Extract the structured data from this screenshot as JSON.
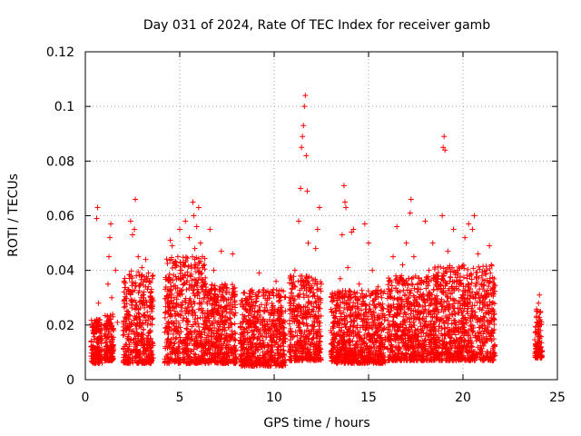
{
  "chart_data": {
    "type": "scatter",
    "title": "Day 031 of 2024, Rate Of TEC Index for receiver gamb",
    "xlabel": "GPS time / hours",
    "ylabel": "ROTI / TECUs",
    "xlim": [
      0,
      25
    ],
    "ylim": [
      0,
      0.12
    ],
    "xticks": [
      0,
      5,
      10,
      15,
      20,
      25
    ],
    "xtick_labels": [
      "0",
      "5",
      "10",
      "15",
      "20",
      "25"
    ],
    "yticks": [
      0,
      0.02,
      0.04,
      0.06,
      0.08,
      0.1,
      0.12
    ],
    "ytick_labels": [
      "0",
      "0.02",
      "0.04",
      "0.06",
      "0.08",
      "0.1",
      "0.12"
    ],
    "grid": true,
    "marker": "+",
    "color": "#ff0000",
    "series": [
      {
        "name": "ROTI",
        "points": [
          [
            0.3,
            0.012
          ],
          [
            0.4,
            0.018
          ],
          [
            0.5,
            0.01
          ],
          [
            0.6,
            0.022
          ],
          [
            0.6,
            0.059
          ],
          [
            0.65,
            0.063
          ],
          [
            0.7,
            0.028
          ],
          [
            0.8,
            0.015
          ],
          [
            1.1,
            0.012
          ],
          [
            1.2,
            0.035
          ],
          [
            1.25,
            0.045
          ],
          [
            1.3,
            0.052
          ],
          [
            1.35,
            0.057
          ],
          [
            1.4,
            0.03
          ],
          [
            1.5,
            0.018
          ],
          [
            1.6,
            0.04
          ],
          [
            1.7,
            0.021
          ],
          [
            2.1,
            0.009
          ],
          [
            2.2,
            0.025
          ],
          [
            2.3,
            0.033
          ],
          [
            2.4,
            0.058
          ],
          [
            2.5,
            0.053
          ],
          [
            2.6,
            0.055
          ],
          [
            2.65,
            0.066
          ],
          [
            2.7,
            0.038
          ],
          [
            2.8,
            0.045
          ],
          [
            3.0,
            0.041
          ],
          [
            3.1,
            0.03
          ],
          [
            3.2,
            0.044
          ],
          [
            3.3,
            0.02
          ],
          [
            3.4,
            0.036
          ],
          [
            4.4,
            0.015
          ],
          [
            4.5,
            0.051
          ],
          [
            4.6,
            0.049
          ],
          [
            4.7,
            0.03
          ],
          [
            4.9,
            0.045
          ],
          [
            5.0,
            0.055
          ],
          [
            5.1,
            0.04
          ],
          [
            5.3,
            0.058
          ],
          [
            5.5,
            0.052
          ],
          [
            5.7,
            0.065
          ],
          [
            5.75,
            0.06
          ],
          [
            5.8,
            0.048
          ],
          [
            5.9,
            0.056
          ],
          [
            6.0,
            0.063
          ],
          [
            6.1,
            0.05
          ],
          [
            6.2,
            0.045
          ],
          [
            6.4,
            0.033
          ],
          [
            6.6,
            0.055
          ],
          [
            6.8,
            0.04
          ],
          [
            7.0,
            0.025
          ],
          [
            7.2,
            0.047
          ],
          [
            7.4,
            0.035
          ],
          [
            7.6,
            0.022
          ],
          [
            7.8,
            0.046
          ],
          [
            8.4,
            0.022
          ],
          [
            8.6,
            0.028
          ],
          [
            8.8,
            0.02
          ],
          [
            9.2,
            0.039
          ],
          [
            9.5,
            0.025
          ],
          [
            9.8,
            0.032
          ],
          [
            10.1,
            0.036
          ],
          [
            10.3,
            0.03
          ],
          [
            10.5,
            0.016
          ],
          [
            10.8,
            0.012
          ],
          [
            11.1,
            0.04
          ],
          [
            11.3,
            0.058
          ],
          [
            11.4,
            0.07
          ],
          [
            11.45,
            0.085
          ],
          [
            11.5,
            0.089
          ],
          [
            11.55,
            0.093
          ],
          [
            11.6,
            0.1
          ],
          [
            11.65,
            0.104
          ],
          [
            11.7,
            0.082
          ],
          [
            11.75,
            0.069
          ],
          [
            11.8,
            0.05
          ],
          [
            12.2,
            0.048
          ],
          [
            12.3,
            0.055
          ],
          [
            12.4,
            0.063
          ],
          [
            12.5,
            0.035
          ],
          [
            13.3,
            0.025
          ],
          [
            13.5,
            0.037
          ],
          [
            13.6,
            0.053
          ],
          [
            13.7,
            0.071
          ],
          [
            13.75,
            0.065
          ],
          [
            13.8,
            0.063
          ],
          [
            13.9,
            0.041
          ],
          [
            14.1,
            0.054
          ],
          [
            14.2,
            0.055
          ],
          [
            14.5,
            0.035
          ],
          [
            14.8,
            0.057
          ],
          [
            15.0,
            0.05
          ],
          [
            15.2,
            0.04
          ],
          [
            15.5,
            0.034
          ],
          [
            15.7,
            0.03
          ],
          [
            16.1,
            0.02
          ],
          [
            16.3,
            0.045
          ],
          [
            16.5,
            0.056
          ],
          [
            16.8,
            0.042
          ],
          [
            17.0,
            0.05
          ],
          [
            17.2,
            0.061
          ],
          [
            17.25,
            0.066
          ],
          [
            17.4,
            0.045
          ],
          [
            17.6,
            0.033
          ],
          [
            18.0,
            0.058
          ],
          [
            18.2,
            0.04
          ],
          [
            18.4,
            0.05
          ],
          [
            18.6,
            0.036
          ],
          [
            18.9,
            0.06
          ],
          [
            18.95,
            0.085
          ],
          [
            19.0,
            0.089
          ],
          [
            19.05,
            0.084
          ],
          [
            19.2,
            0.047
          ],
          [
            19.5,
            0.055
          ],
          [
            19.7,
            0.04
          ],
          [
            20.1,
            0.052
          ],
          [
            20.3,
            0.057
          ],
          [
            20.5,
            0.055
          ],
          [
            20.6,
            0.06
          ],
          [
            20.8,
            0.046
          ],
          [
            21.0,
            0.038
          ],
          [
            21.2,
            0.03
          ],
          [
            21.4,
            0.049
          ],
          [
            21.5,
            0.042
          ],
          [
            23.9,
            0.012
          ],
          [
            23.95,
            0.025
          ],
          [
            24.0,
            0.028
          ],
          [
            24.05,
            0.031
          ],
          [
            24.1,
            0.018
          ]
        ]
      }
    ],
    "dense_blocks": [
      [
        0.3,
        0.9,
        0.006,
        0.022
      ],
      [
        1.0,
        1.5,
        0.007,
        0.024
      ],
      [
        2.0,
        3.6,
        0.006,
        0.04
      ],
      [
        4.2,
        6.4,
        0.006,
        0.045
      ],
      [
        6.4,
        8.0,
        0.006,
        0.035
      ],
      [
        8.2,
        10.6,
        0.005,
        0.033
      ],
      [
        10.8,
        12.5,
        0.007,
        0.038
      ],
      [
        13.0,
        15.9,
        0.006,
        0.033
      ],
      [
        16.0,
        18.5,
        0.007,
        0.038
      ],
      [
        18.5,
        21.7,
        0.007,
        0.042
      ],
      [
        23.8,
        24.2,
        0.008,
        0.026
      ]
    ]
  }
}
